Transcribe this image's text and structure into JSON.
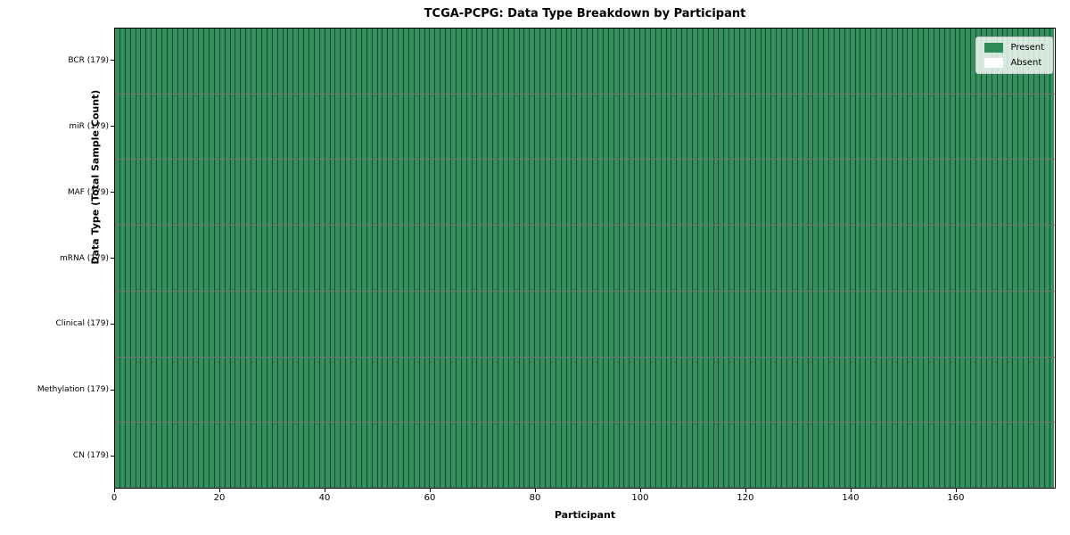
{
  "chart_data": {
    "type": "heatmap",
    "title": "TCGA-PCPG: Data Type Breakdown by Participant",
    "xlabel": "Participant",
    "ylabel": "Data Type (Total Sample Count)",
    "n_participants": 179,
    "xlim": [
      0,
      179
    ],
    "x_ticks": [
      0,
      20,
      40,
      60,
      80,
      100,
      120,
      140,
      160
    ],
    "rows": [
      {
        "label": "BCR (179)",
        "data_type": "BCR",
        "total_samples": 179,
        "present_count": 179,
        "absent_count": 0
      },
      {
        "label": "miR (179)",
        "data_type": "miR",
        "total_samples": 179,
        "present_count": 179,
        "absent_count": 0
      },
      {
        "label": "MAF (179)",
        "data_type": "MAF",
        "total_samples": 179,
        "present_count": 179,
        "absent_count": 0
      },
      {
        "label": "mRNA (179)",
        "data_type": "mRNA",
        "total_samples": 179,
        "present_count": 179,
        "absent_count": 0
      },
      {
        "label": "Clinical (179)",
        "data_type": "Clinical",
        "total_samples": 179,
        "present_count": 179,
        "absent_count": 0
      },
      {
        "label": "Methylation (179)",
        "data_type": "Methylation",
        "total_samples": 179,
        "present_count": 179,
        "absent_count": 0
      },
      {
        "label": "CN (179)",
        "data_type": "CN",
        "total_samples": 179,
        "present_count": 179,
        "absent_count": 0
      }
    ],
    "legend": {
      "position": "upper right",
      "entries": [
        {
          "label": "Present",
          "color": "#2e8b57"
        },
        {
          "label": "Absent",
          "color": "#ffffff"
        }
      ]
    },
    "colors": {
      "present": "#35905e",
      "absent": "#ffffff",
      "cell_edge": "rgba(0,0,0,0.50)",
      "spine": "#000000"
    },
    "grid": "cell-edges"
  }
}
